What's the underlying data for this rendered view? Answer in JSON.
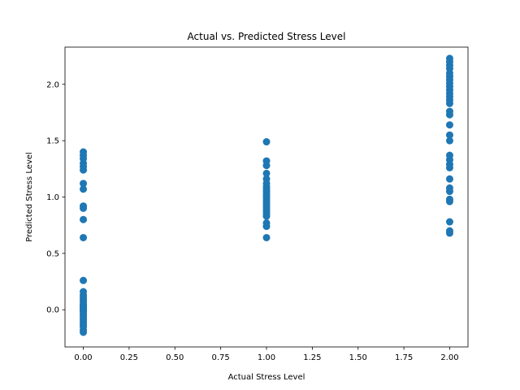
{
  "chart_data": {
    "type": "scatter",
    "title": "Actual vs. Predicted Stress Level",
    "xlabel": "Actual Stress Level",
    "ylabel": "Predicted Stress Level",
    "xlim": [
      -0.1,
      2.1
    ],
    "ylim": [
      -0.33,
      2.33
    ],
    "xticks": [
      0.0,
      0.25,
      0.5,
      0.75,
      1.0,
      1.25,
      1.5,
      1.75,
      2.0
    ],
    "xtick_labels": [
      "0.00",
      "0.25",
      "0.50",
      "0.75",
      "1.00",
      "1.25",
      "1.50",
      "1.75",
      "2.00"
    ],
    "yticks": [
      0.0,
      0.5,
      1.0,
      1.5,
      2.0
    ],
    "ytick_labels": [
      "0.0",
      "0.5",
      "1.0",
      "1.5",
      "2.0"
    ],
    "grid": false,
    "marker_color": "#1f77b4",
    "points": [
      {
        "x": 0,
        "y": 1.4
      },
      {
        "x": 0,
        "y": 1.37
      },
      {
        "x": 0,
        "y": 1.34
      },
      {
        "x": 0,
        "y": 1.3
      },
      {
        "x": 0,
        "y": 1.27
      },
      {
        "x": 0,
        "y": 1.24
      },
      {
        "x": 0,
        "y": 1.12
      },
      {
        "x": 0,
        "y": 1.07
      },
      {
        "x": 0,
        "y": 0.92
      },
      {
        "x": 0,
        "y": 0.9
      },
      {
        "x": 0,
        "y": 0.8
      },
      {
        "x": 0,
        "y": 0.64
      },
      {
        "x": 0,
        "y": 0.26
      },
      {
        "x": 0,
        "y": 0.16
      },
      {
        "x": 0,
        "y": 0.13
      },
      {
        "x": 0,
        "y": 0.11
      },
      {
        "x": 0,
        "y": 0.09
      },
      {
        "x": 0,
        "y": 0.07
      },
      {
        "x": 0,
        "y": 0.05
      },
      {
        "x": 0,
        "y": 0.04
      },
      {
        "x": 0,
        "y": 0.03
      },
      {
        "x": 0,
        "y": 0.02
      },
      {
        "x": 0,
        "y": 0.01
      },
      {
        "x": 0,
        "y": 0.0
      },
      {
        "x": 0,
        "y": -0.01
      },
      {
        "x": 0,
        "y": -0.02
      },
      {
        "x": 0,
        "y": -0.04
      },
      {
        "x": 0,
        "y": -0.05
      },
      {
        "x": 0,
        "y": -0.07
      },
      {
        "x": 0,
        "y": -0.09
      },
      {
        "x": 0,
        "y": -0.11
      },
      {
        "x": 0,
        "y": -0.13
      },
      {
        "x": 0,
        "y": -0.15
      },
      {
        "x": 0,
        "y": -0.18
      },
      {
        "x": 0,
        "y": -0.2
      },
      {
        "x": 1,
        "y": 1.49
      },
      {
        "x": 1,
        "y": 1.32
      },
      {
        "x": 1,
        "y": 1.28
      },
      {
        "x": 1,
        "y": 1.21
      },
      {
        "x": 1,
        "y": 1.16
      },
      {
        "x": 1,
        "y": 1.12
      },
      {
        "x": 1,
        "y": 1.09
      },
      {
        "x": 1,
        "y": 1.07
      },
      {
        "x": 1,
        "y": 1.05
      },
      {
        "x": 1,
        "y": 1.03
      },
      {
        "x": 1,
        "y": 1.01
      },
      {
        "x": 1,
        "y": 0.99
      },
      {
        "x": 1,
        "y": 0.97
      },
      {
        "x": 1,
        "y": 0.95
      },
      {
        "x": 1,
        "y": 0.93
      },
      {
        "x": 1,
        "y": 0.91
      },
      {
        "x": 1,
        "y": 0.89
      },
      {
        "x": 1,
        "y": 0.87
      },
      {
        "x": 1,
        "y": 0.85
      },
      {
        "x": 1,
        "y": 0.83
      },
      {
        "x": 1,
        "y": 0.77
      },
      {
        "x": 1,
        "y": 0.74
      },
      {
        "x": 1,
        "y": 0.64
      },
      {
        "x": 2,
        "y": 2.23
      },
      {
        "x": 2,
        "y": 2.2
      },
      {
        "x": 2,
        "y": 2.17
      },
      {
        "x": 2,
        "y": 2.14
      },
      {
        "x": 2,
        "y": 2.1
      },
      {
        "x": 2,
        "y": 2.07
      },
      {
        "x": 2,
        "y": 2.04
      },
      {
        "x": 2,
        "y": 2.01
      },
      {
        "x": 2,
        "y": 1.98
      },
      {
        "x": 2,
        "y": 1.95
      },
      {
        "x": 2,
        "y": 1.92
      },
      {
        "x": 2,
        "y": 1.89
      },
      {
        "x": 2,
        "y": 1.86
      },
      {
        "x": 2,
        "y": 1.83
      },
      {
        "x": 2,
        "y": 1.76
      },
      {
        "x": 2,
        "y": 1.73
      },
      {
        "x": 2,
        "y": 1.64
      },
      {
        "x": 2,
        "y": 1.55
      },
      {
        "x": 2,
        "y": 1.5
      },
      {
        "x": 2,
        "y": 1.37
      },
      {
        "x": 2,
        "y": 1.33
      },
      {
        "x": 2,
        "y": 1.29
      },
      {
        "x": 2,
        "y": 1.26
      },
      {
        "x": 2,
        "y": 1.16
      },
      {
        "x": 2,
        "y": 1.08
      },
      {
        "x": 2,
        "y": 1.05
      },
      {
        "x": 2,
        "y": 0.98
      },
      {
        "x": 2,
        "y": 0.96
      },
      {
        "x": 2,
        "y": 0.78
      },
      {
        "x": 2,
        "y": 0.7
      },
      {
        "x": 2,
        "y": 0.68
      }
    ]
  }
}
